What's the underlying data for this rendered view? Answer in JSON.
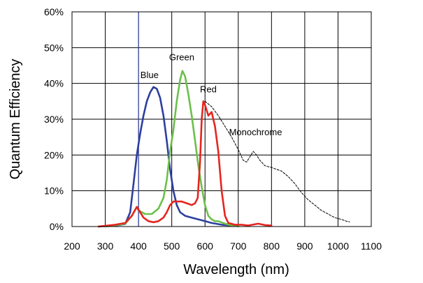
{
  "chart_data": {
    "type": "line",
    "xlabel": "Wavelength (nm)",
    "ylabel": "Quantum Efficiency",
    "xlim": [
      200,
      1100
    ],
    "ylim": [
      0,
      60
    ],
    "x_ticks": [
      200,
      300,
      400,
      500,
      600,
      700,
      800,
      900,
      1000,
      1100
    ],
    "x_tick_labels": [
      "200",
      "300",
      "400",
      "500",
      "600",
      "700",
      "800",
      "900",
      "1000",
      "1100"
    ],
    "y_ticks": [
      0,
      10,
      20,
      30,
      40,
      50,
      60
    ],
    "y_tick_labels": [
      "0%",
      "10%",
      "20%",
      "30%",
      "40%",
      "50%",
      "60%"
    ],
    "grid": true,
    "series": [
      {
        "name": "Blue",
        "color": "#2d3f9e",
        "style": "solid",
        "label_pos": [
          433,
          41.5
        ],
        "points": [
          [
            280,
            0
          ],
          [
            340,
            0.4
          ],
          [
            360,
            0.7
          ],
          [
            375,
            4
          ],
          [
            385,
            12
          ],
          [
            395,
            20
          ],
          [
            405,
            26
          ],
          [
            415,
            31
          ],
          [
            425,
            35
          ],
          [
            435,
            37.5
          ],
          [
            445,
            39
          ],
          [
            455,
            38.5
          ],
          [
            465,
            36
          ],
          [
            475,
            31
          ],
          [
            485,
            24
          ],
          [
            495,
            16
          ],
          [
            505,
            10
          ],
          [
            515,
            6
          ],
          [
            525,
            4
          ],
          [
            540,
            3
          ],
          [
            560,
            2.5
          ],
          [
            580,
            2
          ],
          [
            600,
            1.5
          ],
          [
            620,
            1
          ],
          [
            650,
            0.5
          ],
          [
            680,
            0.3
          ],
          [
            700,
            0.1
          ]
        ]
      },
      {
        "name": "Green",
        "color": "#6cc04a",
        "style": "solid",
        "label_pos": [
          530,
          46.5
        ],
        "points": [
          [
            300,
            0
          ],
          [
            340,
            0.5
          ],
          [
            360,
            0.8
          ],
          [
            380,
            3
          ],
          [
            395,
            5.5
          ],
          [
            400,
            4.5
          ],
          [
            410,
            4
          ],
          [
            420,
            3.5
          ],
          [
            440,
            3.5
          ],
          [
            460,
            5
          ],
          [
            475,
            8
          ],
          [
            485,
            13
          ],
          [
            495,
            21
          ],
          [
            505,
            27
          ],
          [
            515,
            35
          ],
          [
            525,
            41
          ],
          [
            532,
            43.5
          ],
          [
            540,
            42
          ],
          [
            550,
            37
          ],
          [
            560,
            31
          ],
          [
            570,
            24
          ],
          [
            580,
            17
          ],
          [
            590,
            11
          ],
          [
            600,
            6
          ],
          [
            610,
            3
          ],
          [
            620,
            2
          ],
          [
            630,
            1.5
          ],
          [
            640,
            1.5
          ],
          [
            660,
            0.8
          ],
          [
            680,
            0.3
          ],
          [
            700,
            0.1
          ]
        ]
      },
      {
        "name": "Red",
        "color": "#e52520",
        "style": "solid",
        "label_pos": [
          610,
          37.5
        ],
        "points": [
          [
            280,
            0
          ],
          [
            330,
            0.5
          ],
          [
            360,
            1
          ],
          [
            380,
            3
          ],
          [
            395,
            5.5
          ],
          [
            405,
            4
          ],
          [
            415,
            2.5
          ],
          [
            430,
            1.5
          ],
          [
            445,
            1.2
          ],
          [
            460,
            1.5
          ],
          [
            475,
            2.5
          ],
          [
            485,
            4
          ],
          [
            495,
            6
          ],
          [
            505,
            7
          ],
          [
            515,
            7
          ],
          [
            530,
            7
          ],
          [
            545,
            6.5
          ],
          [
            560,
            6
          ],
          [
            570,
            6.5
          ],
          [
            578,
            8
          ],
          [
            585,
            18
          ],
          [
            590,
            30
          ],
          [
            595,
            35
          ],
          [
            600,
            34
          ],
          [
            610,
            31
          ],
          [
            620,
            32
          ],
          [
            630,
            28
          ],
          [
            640,
            21
          ],
          [
            650,
            10
          ],
          [
            660,
            3
          ],
          [
            670,
            1
          ],
          [
            690,
            0.5
          ],
          [
            710,
            0.5
          ],
          [
            730,
            0.3
          ],
          [
            760,
            0.8
          ],
          [
            780,
            0.4
          ],
          [
            800,
            0.3
          ]
        ]
      },
      {
        "name": "Monochrome",
        "color": "#000000",
        "style": "dashed",
        "label_pos": [
          752,
          25.5
        ],
        "points": [
          [
            600,
            35
          ],
          [
            620,
            33.5
          ],
          [
            640,
            31
          ],
          [
            660,
            28
          ],
          [
            680,
            25
          ],
          [
            700,
            21.5
          ],
          [
            715,
            18.5
          ],
          [
            725,
            18
          ],
          [
            735,
            19.5
          ],
          [
            745,
            21
          ],
          [
            755,
            20
          ],
          [
            765,
            18.5
          ],
          [
            780,
            17
          ],
          [
            800,
            16.5
          ],
          [
            815,
            16
          ],
          [
            830,
            15.5
          ],
          [
            850,
            14
          ],
          [
            870,
            12
          ],
          [
            890,
            9.5
          ],
          [
            910,
            7.5
          ],
          [
            930,
            6
          ],
          [
            950,
            4.5
          ],
          [
            970,
            3.5
          ],
          [
            990,
            2.5
          ],
          [
            1010,
            2
          ],
          [
            1025,
            1.5
          ],
          [
            1035,
            1.3
          ]
        ]
      }
    ],
    "vertical_marker": {
      "x": 400,
      "color": "#2d3f9e"
    }
  }
}
